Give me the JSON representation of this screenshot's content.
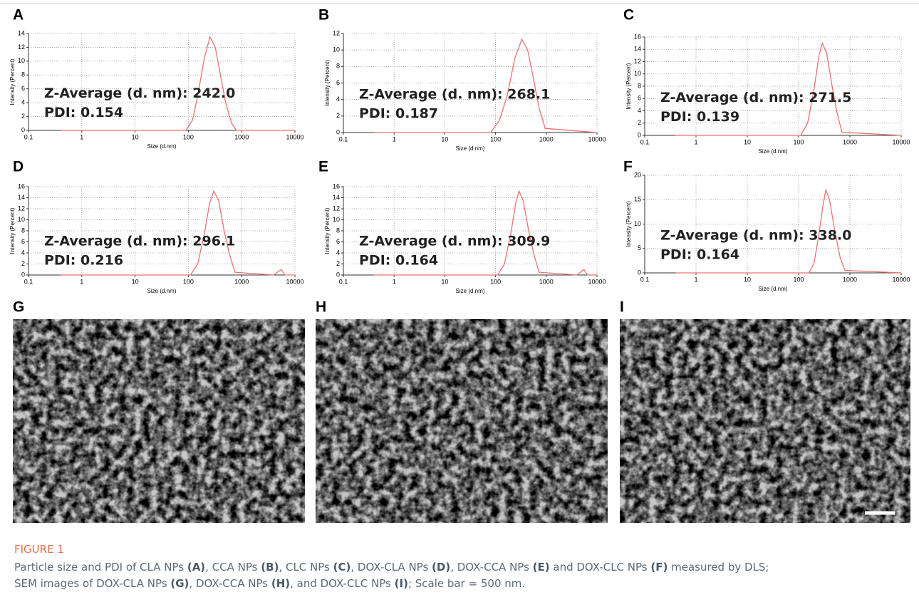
{
  "chart_data": [
    {
      "type": "line",
      "panel": "A",
      "x": [
        0.4,
        90,
        120,
        150,
        200,
        255,
        320,
        400,
        500,
        650,
        800,
        10000
      ],
      "values": [
        0,
        0,
        1.5,
        5,
        10.5,
        13.5,
        12,
        8,
        4,
        1,
        0,
        0
      ],
      "color": "#f07070",
      "xlabel": "Size (d.nm)",
      "ylabel": "Intensity (Percent)",
      "log_x": true,
      "grid": true,
      "xlim": [
        0.1,
        10000
      ],
      "xticks": [
        0.1,
        1,
        10,
        100,
        1000,
        10000
      ],
      "ylim": [
        0,
        14
      ],
      "yticks": [
        0,
        2,
        4,
        6,
        8,
        10,
        12,
        14
      ],
      "annotations": [
        "Z-Average (d. nm): 242.0",
        "PDI: 0.154"
      ]
    },
    {
      "type": "line",
      "panel": "B",
      "x": [
        0.4,
        80,
        120,
        170,
        240,
        330,
        430,
        560,
        720,
        950,
        10000
      ],
      "values": [
        0,
        0,
        1.5,
        4.5,
        9,
        11.3,
        10,
        6.5,
        3,
        0.5,
        0
      ],
      "color": "#f07070",
      "xlabel": "Size (d.nm)",
      "ylabel": "Intensity (Percent)",
      "log_x": true,
      "grid": true,
      "xlim": [
        0.1,
        10000
      ],
      "xticks": [
        0.1,
        1,
        10,
        100,
        1000,
        10000
      ],
      "ylim": [
        0,
        12
      ],
      "yticks": [
        0,
        2,
        4,
        6,
        8,
        10,
        12
      ],
      "annotations": [
        "Z-Average (d. nm): 268.1",
        "PDI: 0.187"
      ]
    },
    {
      "type": "line",
      "panel": "C",
      "x": [
        0.4,
        110,
        150,
        200,
        250,
        290,
        350,
        450,
        550,
        700,
        10000
      ],
      "values": [
        0,
        0,
        2,
        7.5,
        13,
        15,
        13.5,
        8,
        4,
        0.5,
        0
      ],
      "color": "#f07070",
      "xlabel": "Size (d.nm)",
      "ylabel": "Intensity (Percent)",
      "log_x": true,
      "grid": true,
      "xlim": [
        0.1,
        10000
      ],
      "xticks": [
        0.1,
        1,
        10,
        100,
        1000,
        10000
      ],
      "ylim": [
        0,
        16
      ],
      "yticks": [
        0,
        2,
        4,
        6,
        8,
        10,
        12,
        14,
        16
      ],
      "annotations": [
        "Z-Average (d. nm): 271.5",
        "PDI: 0.139"
      ]
    },
    {
      "type": "line",
      "panel": "D",
      "x": [
        0.4,
        110,
        150,
        200,
        250,
        300,
        370,
        470,
        580,
        750,
        4000,
        5500,
        6500,
        10000
      ],
      "values": [
        0,
        0,
        2,
        7.5,
        13,
        15.2,
        13.5,
        8,
        4,
        0.5,
        0,
        1,
        0,
        0
      ],
      "color": "#f07070",
      "xlabel": "Size (d.nm)",
      "ylabel": "Intensity (Percent)",
      "log_x": true,
      "grid": true,
      "xlim": [
        0.1,
        10000
      ],
      "xticks": [
        0.1,
        1,
        10,
        100,
        1000,
        10000
      ],
      "ylim": [
        0,
        16
      ],
      "yticks": [
        0,
        2,
        4,
        6,
        8,
        10,
        12,
        14,
        16
      ],
      "annotations": [
        "Z-Average (d. nm): 296.1",
        "PDI: 0.216"
      ]
    },
    {
      "type": "line",
      "panel": "E",
      "x": [
        0.4,
        110,
        150,
        200,
        250,
        290,
        350,
        450,
        560,
        720,
        4000,
        5500,
        6500,
        10000
      ],
      "values": [
        0,
        0,
        2,
        7.5,
        13,
        15.2,
        13.5,
        8,
        4,
        0.5,
        0,
        1,
        0,
        0
      ],
      "color": "#f07070",
      "xlabel": "Size (d.nm)",
      "ylabel": "Intensity (Percent)",
      "log_x": true,
      "grid": true,
      "xlim": [
        0.1,
        10000
      ],
      "xticks": [
        0.1,
        1,
        10,
        100,
        1000,
        10000
      ],
      "ylim": [
        0,
        16
      ],
      "yticks": [
        0,
        2,
        4,
        6,
        8,
        10,
        12,
        14,
        16
      ],
      "annotations": [
        "Z-Average (d. nm): 309.9",
        "PDI: 0.164"
      ]
    },
    {
      "type": "line",
      "panel": "F",
      "x": [
        0.4,
        160,
        200,
        250,
        300,
        340,
        400,
        500,
        650,
        800,
        10000
      ],
      "values": [
        0,
        0,
        2,
        8,
        14,
        17,
        15,
        9,
        3,
        0.5,
        0
      ],
      "color": "#f07070",
      "xlabel": "Size (d.nm)",
      "ylabel": "Intensity (Percent)",
      "log_x": true,
      "grid": true,
      "xlim": [
        0.1,
        10000
      ],
      "xticks": [
        0.1,
        1,
        10,
        100,
        1000,
        10000
      ],
      "ylim": [
        0,
        20
      ],
      "yticks": [
        0,
        5,
        10,
        15,
        20
      ],
      "annotations": [
        "Z-Average (d. nm): 338.0",
        "PDI: 0.164"
      ]
    }
  ],
  "images": [
    {
      "panel": "G"
    },
    {
      "panel": "H"
    },
    {
      "panel": "I"
    }
  ],
  "caption": {
    "label": "FIGURE 1",
    "text": [
      "Particle size and PDI of CLA NPs ",
      "(A)",
      ", CCA NPs ",
      "(B)",
      ", CLC NPs ",
      "(C)",
      ", DOX-CLA NPs ",
      "(D)",
      ", DOX-CCA NPs ",
      "(E)",
      " and DOX-CLC NPs ",
      "(F)",
      " measured by DLS;",
      "SEM images of DOX-CLA NPs ",
      "(G)",
      ", DOX-CCA NPs ",
      "(H)",
      ", and DOX-CLC NPs ",
      "(I)",
      "; Scale bar = 500 nm."
    ]
  }
}
